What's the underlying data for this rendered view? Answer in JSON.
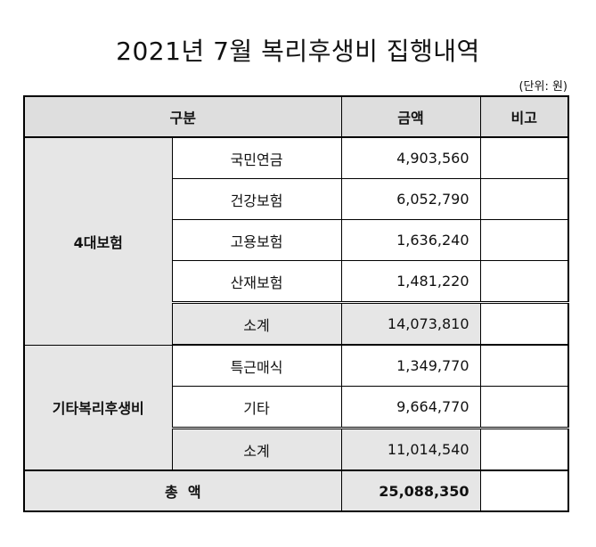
{
  "title": "2021년 7월 복리후생비 집행내역",
  "unit": "(단위: 원)",
  "headers": {
    "category": "구분",
    "amount": "금액",
    "note": "비고"
  },
  "groups": [
    {
      "name": "4대보험",
      "rows": [
        {
          "item": "국민연금",
          "amount": "4,903,560"
        },
        {
          "item": "건강보험",
          "amount": "6,052,790"
        },
        {
          "item": "고용보험",
          "amount": "1,636,240"
        },
        {
          "item": "산재보험",
          "amount": "1,481,220"
        }
      ],
      "subtotal": {
        "label": "소계",
        "amount": "14,073,810"
      }
    },
    {
      "name": "기타복리후생비",
      "rows": [
        {
          "item": "특근매식",
          "amount": "1,349,770"
        },
        {
          "item": "기타",
          "amount": "9,664,770"
        }
      ],
      "subtotal": {
        "label": "소계",
        "amount": "11,014,540"
      }
    }
  ],
  "total": {
    "label": "총  액",
    "amount": "25,088,350"
  }
}
